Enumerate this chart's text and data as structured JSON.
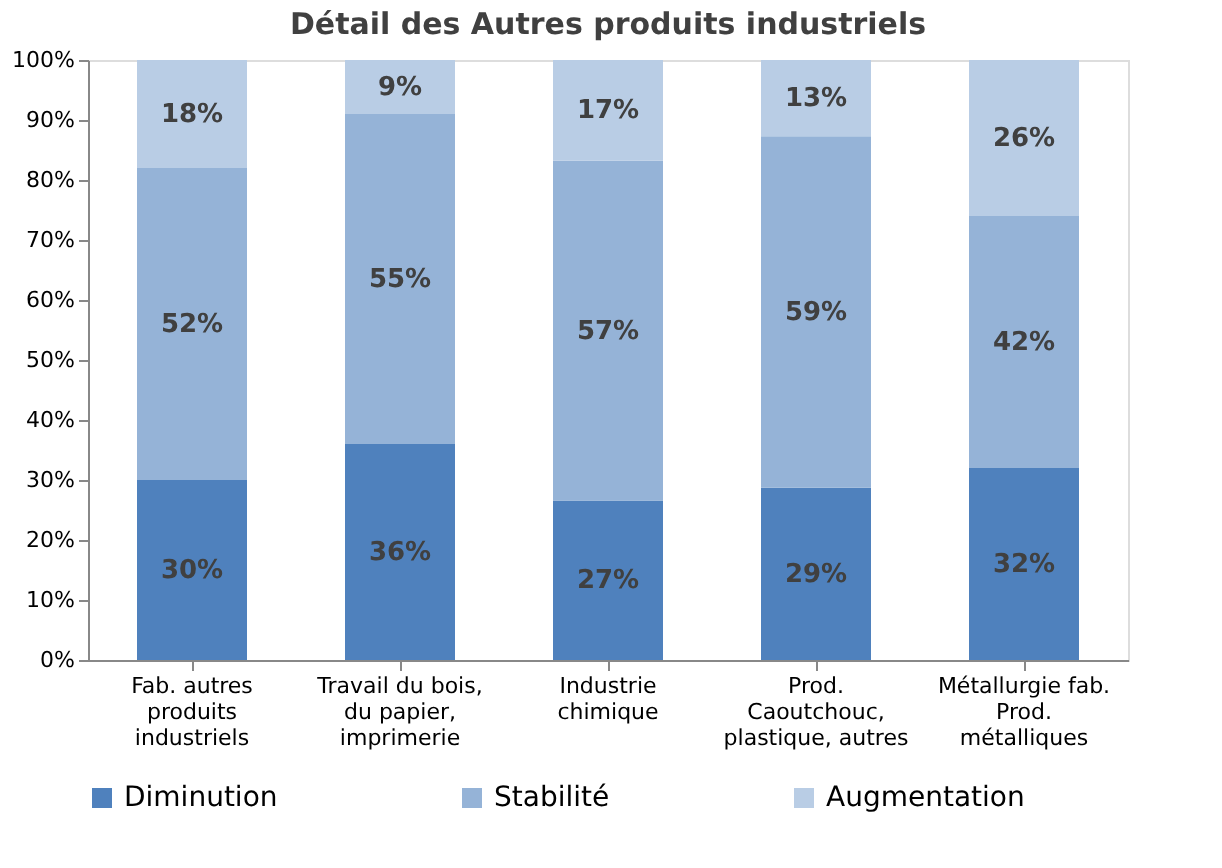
{
  "chart_data": {
    "type": "bar",
    "stacked": true,
    "title": "Détail des Autres produits industriels",
    "categories": [
      "Fab. autres\nproduits\nindustriels",
      "Travail du bois,\ndu papier,\nimprimerie",
      "Industrie\nchimique",
      "Prod.\nCaoutchouc,\nplastique, autres",
      "Métallurgie fab.\nProd.\nmétalliques"
    ],
    "series": [
      {
        "name": "Diminution",
        "color": "#4f81bd",
        "values": [
          30,
          36,
          26.6,
          28.7,
          32
        ],
        "value_labels": [
          "30%",
          "36%",
          "27%",
          "29%",
          "32%"
        ]
      },
      {
        "name": "Stabilité",
        "color": "#95b3d7",
        "values": [
          52,
          55,
          56.6,
          58.6,
          42
        ],
        "value_labels": [
          "52%",
          "55%",
          "57%",
          "59%",
          "42%"
        ]
      },
      {
        "name": "Augmentation",
        "color": "#b9cde5",
        "values": [
          18,
          9,
          16.8,
          12.7,
          26
        ],
        "value_labels": [
          "18%",
          "9%",
          "17%",
          "13%",
          "26%"
        ]
      }
    ],
    "ylim": [
      0,
      100
    ],
    "yticks": [
      {
        "value": 0,
        "label": "0%"
      },
      {
        "value": 10,
        "label": "10%"
      },
      {
        "value": 20,
        "label": "20%"
      },
      {
        "value": 30,
        "label": "30%"
      },
      {
        "value": 40,
        "label": "40%"
      },
      {
        "value": 50,
        "label": "50%"
      },
      {
        "value": 60,
        "label": "60%"
      },
      {
        "value": 70,
        "label": "70%"
      },
      {
        "value": 80,
        "label": "80%"
      },
      {
        "value": 90,
        "label": "90%"
      },
      {
        "value": 100,
        "label": "100%"
      }
    ],
    "grid": false,
    "legend": "bottom"
  }
}
